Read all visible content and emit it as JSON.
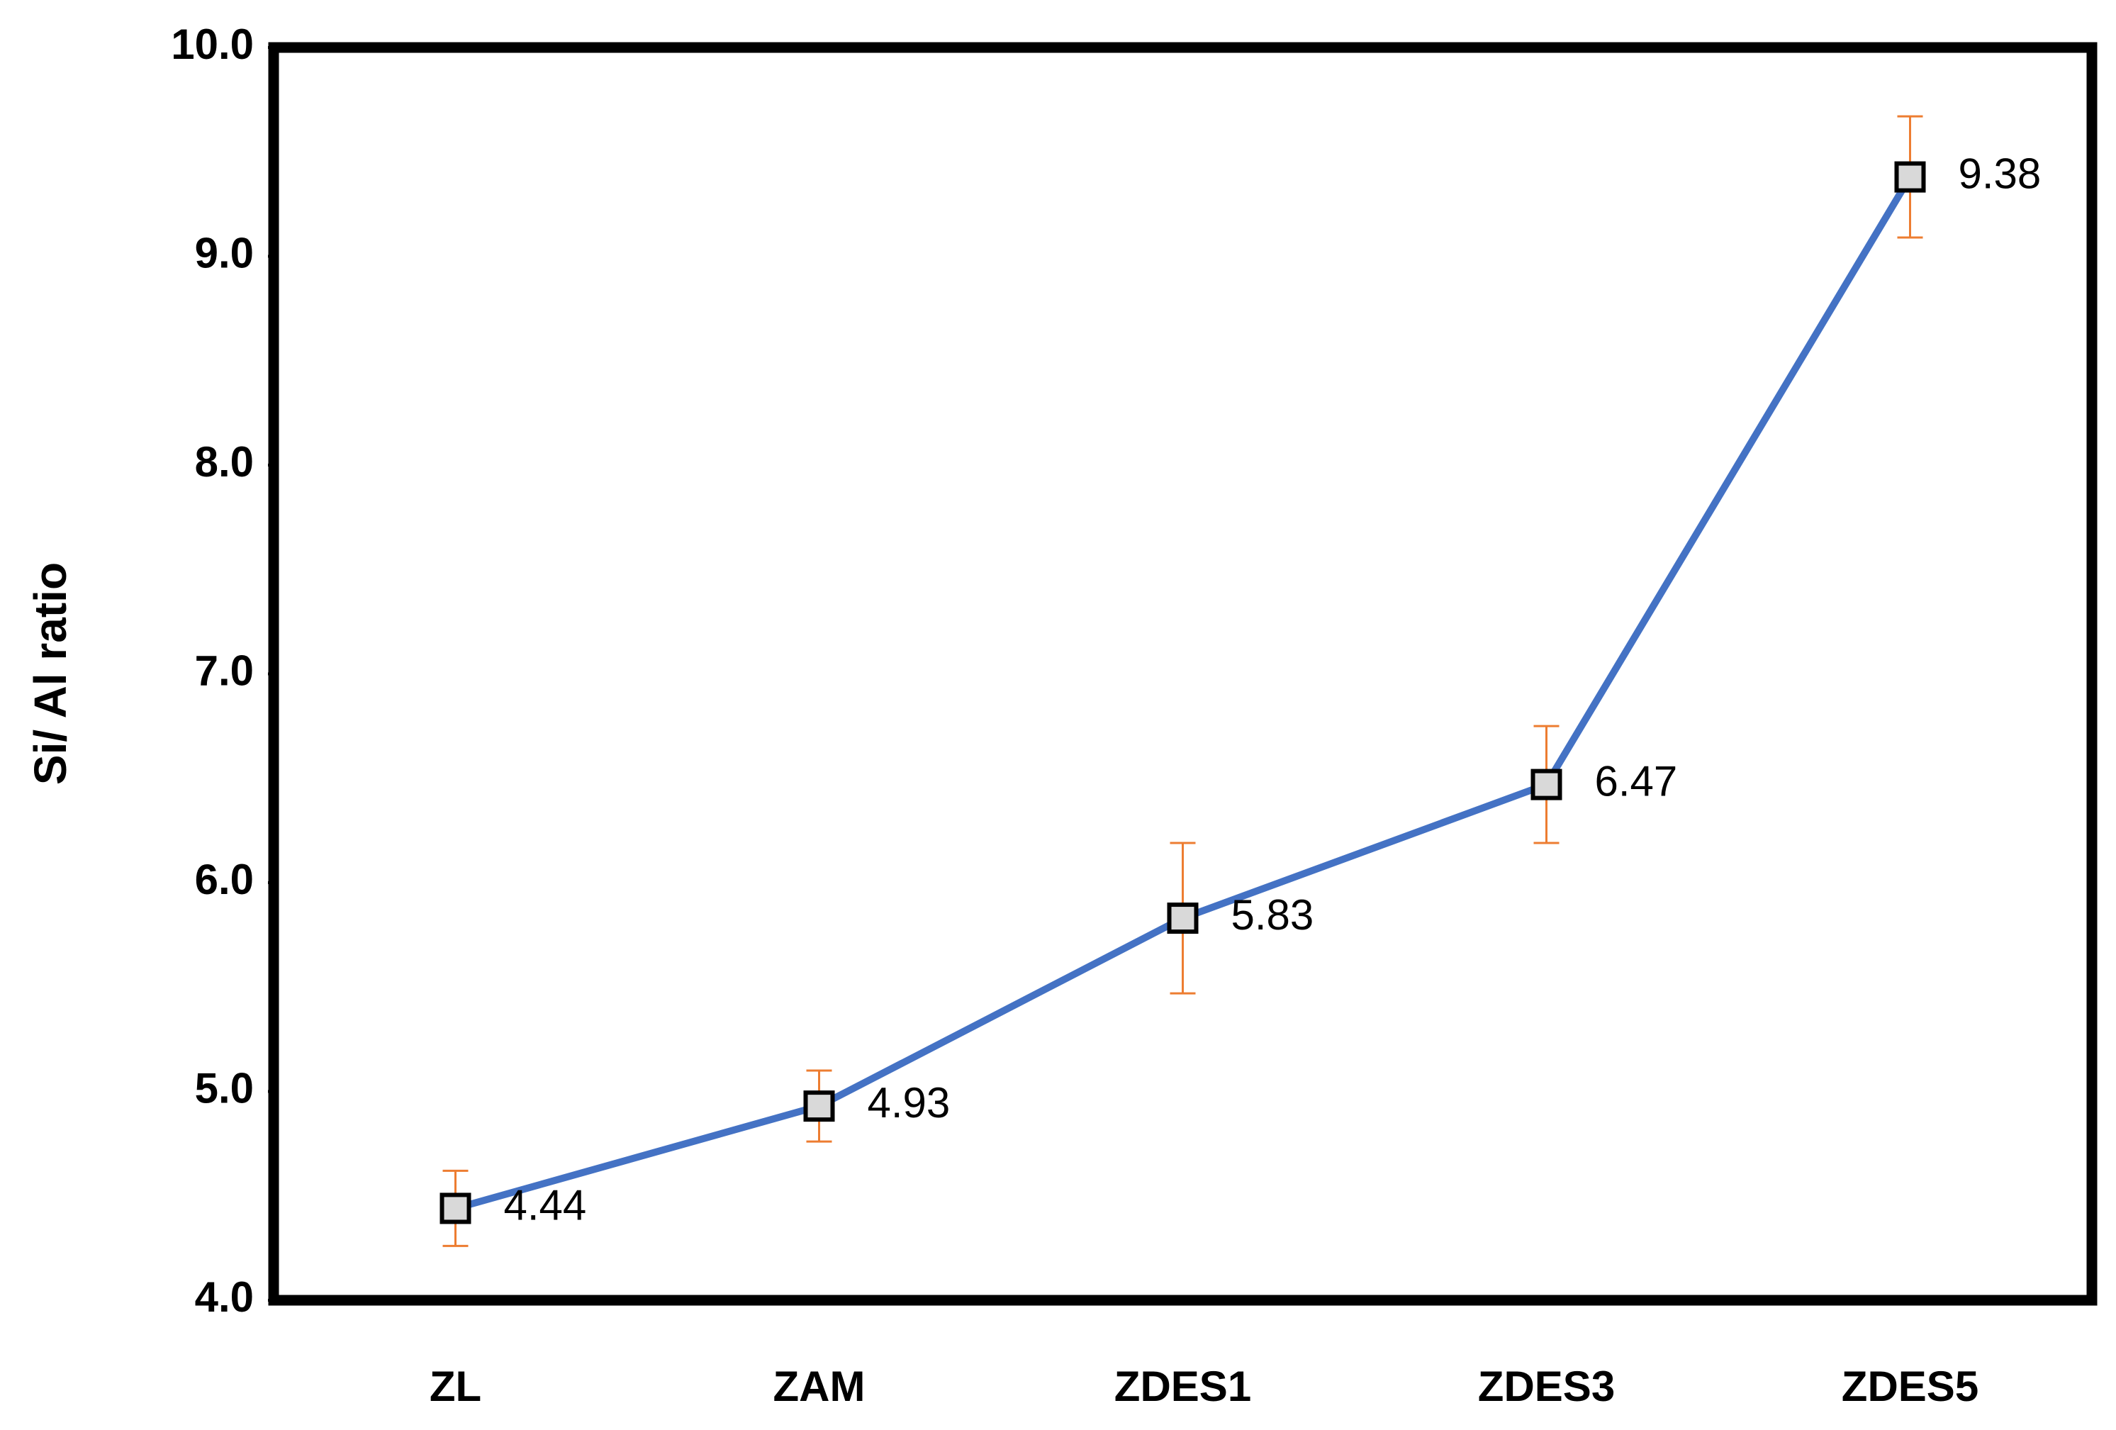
{
  "chart_data": {
    "type": "line",
    "y_label": "Si/ Al ratio",
    "categories": [
      "ZL",
      "ZAM",
      "ZDES1",
      "ZDES3",
      "ZDES5"
    ],
    "values": [
      4.44,
      4.93,
      5.83,
      6.47,
      9.38
    ],
    "errors": [
      0.18,
      0.17,
      0.36,
      0.28,
      0.29
    ],
    "color": "#4472c4",
    "error_color": "#ed7d31",
    "marker_fill": "#d9d9d9",
    "ylim": [
      4,
      10
    ],
    "yticks": [
      {
        "value": 4,
        "label": "4.0"
      },
      {
        "value": 5,
        "label": "5.0"
      },
      {
        "value": 6,
        "label": "6.0"
      },
      {
        "value": 7,
        "label": "7.0"
      },
      {
        "value": 8,
        "label": "8.0"
      },
      {
        "value": 9,
        "label": "9.0"
      },
      {
        "value": 10,
        "label": "10.0"
      }
    ],
    "grid": false
  }
}
